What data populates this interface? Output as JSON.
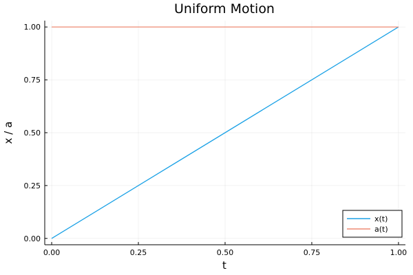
{
  "chart_data": {
    "type": "line",
    "title": "Uniform Motion",
    "xlabel": "t",
    "ylabel": "x / a",
    "xlim": [
      -0.02,
      1.02
    ],
    "ylim": [
      -0.03,
      1.03
    ],
    "xticks": [
      0.0,
      0.25,
      0.5,
      0.75,
      1.0
    ],
    "xtick_labels": [
      "0.00",
      "0.25",
      "0.50",
      "0.75",
      "1.00"
    ],
    "yticks": [
      0.0,
      0.25,
      0.5,
      0.75,
      1.0
    ],
    "ytick_labels": [
      "0.00",
      "0.25",
      "0.50",
      "0.75",
      "1.00"
    ],
    "grid": true,
    "legend_position": "bottom-right",
    "series": [
      {
        "name": "x(t)",
        "color": "#1aa1e6",
        "x": [
          0.0,
          1.0
        ],
        "y": [
          0.0,
          1.0
        ]
      },
      {
        "name": "a(t)",
        "color": "#ee8a73",
        "x": [
          0.0,
          1.0
        ],
        "y": [
          1.0,
          1.0
        ]
      }
    ]
  }
}
